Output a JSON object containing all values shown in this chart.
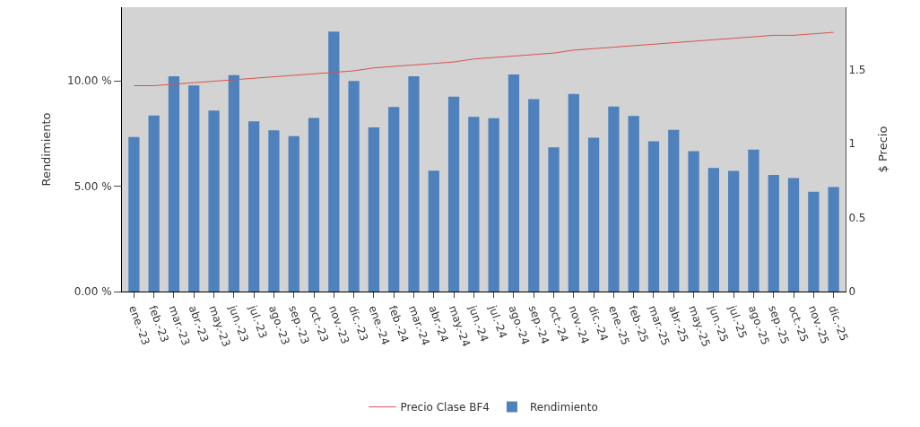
{
  "chart_data": {
    "type": "bar",
    "ylabel": "Rendimiento",
    "y2label": "$ Precio",
    "categories": [
      "ene.-23",
      "feb.-23",
      "mar.-23",
      "abr.-23",
      "may.-23",
      "jun.-23",
      "jul.-23",
      "ago.-23",
      "sep.-23",
      "oct.-23",
      "nov.-23",
      "dic.-23",
      "ene.-24",
      "feb.-24",
      "mar.-24",
      "abr.-24",
      "may.-24",
      "jun.-24",
      "jul.-24",
      "ago.-24",
      "sep.-24",
      "oct.-24",
      "nov.-24",
      "dic.-24",
      "ene.-25",
      "feb.-25",
      "mar.-25",
      "abr.-25",
      "may.-25",
      "jun.-25",
      "jul.-25",
      "ago.-25",
      "sep.-25",
      "oct.-25",
      "nov.-25",
      "dic.-25"
    ],
    "series": [
      {
        "name": "Precio Clase BF4",
        "type": "line",
        "axis": "y2",
        "color": "#d9534f",
        "values": [
          1.39,
          1.39,
          1.4,
          1.41,
          1.42,
          1.43,
          1.44,
          1.45,
          1.46,
          1.47,
          1.48,
          1.49,
          1.51,
          1.52,
          1.53,
          1.54,
          1.55,
          1.57,
          1.58,
          1.59,
          1.6,
          1.61,
          1.63,
          1.64,
          1.65,
          1.66,
          1.67,
          1.68,
          1.69,
          1.7,
          1.71,
          1.72,
          1.73,
          1.73,
          1.74,
          1.75
        ]
      },
      {
        "name": "Rendimiento",
        "color": "#4f81bd",
        "values": [
          7.34,
          8.36,
          10.22,
          9.78,
          8.59,
          10.27,
          8.08,
          7.65,
          7.38,
          8.24,
          12.34,
          10.0,
          7.79,
          8.76,
          10.22,
          5.74,
          9.25,
          8.29,
          8.23,
          10.31,
          9.14,
          6.85,
          9.38,
          7.3,
          8.78,
          8.34,
          7.13,
          7.68,
          6.66,
          5.87,
          5.73,
          6.74,
          5.54,
          5.39,
          4.74,
          4.96
        ]
      }
    ],
    "ylim": [
      0,
      13.5
    ],
    "yticks": [
      {
        "value": 0,
        "label": "0.00 %"
      },
      {
        "value": 5,
        "label": "5.00 %"
      },
      {
        "value": 10,
        "label": "10.00 %"
      }
    ],
    "y2lim": [
      0,
      1.92
    ],
    "y2ticks": [
      0,
      0.5,
      1,
      1.5
    ],
    "legend": "bottom",
    "grid": false
  }
}
